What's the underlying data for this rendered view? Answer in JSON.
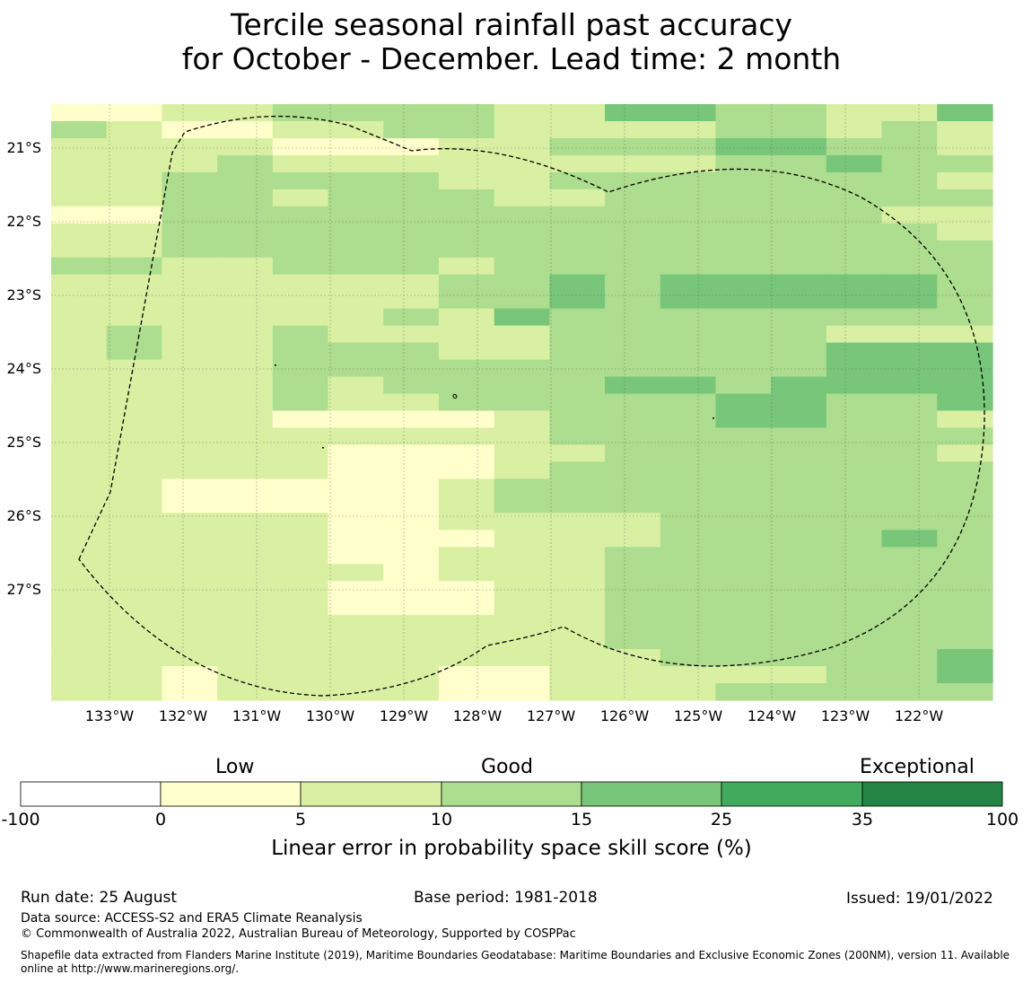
{
  "title": {
    "line1": "Tercile seasonal rainfall past accuracy",
    "line2": "for October - December. Lead time: 2 month"
  },
  "map": {
    "lat_labels": [
      "21°S",
      "22°S",
      "23°S",
      "24°S",
      "25°S",
      "26°S",
      "27°S"
    ],
    "lon_labels": [
      "133°W",
      "132°W",
      "131°W",
      "130°W",
      "129°W",
      "128°W",
      "127°W",
      "126°W",
      "125°W",
      "124°W",
      "123°W",
      "122°W"
    ],
    "skill_grid_class_rows": [
      "11223333224433224",
      "32112233222233232",
      "22221112233344332",
      "22232222222233433",
      "22333332233333332",
      "22332333223333333",
      "11333333333333322",
      "22333333333333332",
      "22333333333333333",
      "33223332333333333",
      "22222223343444443",
      "22222223343444443",
      "22222232433333333",
      "23223222233333222",
      "23223332233333444",
      "22223333333333444",
      "22223233334434444",
      "22223223333344334",
      "22221111233344332",
      "22222222233333333",
      "22222111223333332",
      "22222111233333333",
      "22111112333333333",
      "22111112333333333",
      "22222112222333333",
      "22222111222333343",
      "22222112223333333",
      "22222212223333333",
      "22222111223333333",
      "22222111223333333",
      "22222222223333333",
      "22222222223333333",
      "22222222222333334",
      "22122221122222334",
      "22122221122233333"
    ]
  },
  "colorbar": {
    "category_low": "Low",
    "category_good": "Good",
    "category_exceptional": "Exceptional",
    "ticks": [
      "-100",
      "0",
      "5",
      "10",
      "15",
      "25",
      "35",
      "100"
    ],
    "colors": [
      "#ffffff",
      "#ffffcc",
      "#d9f0a3",
      "#addd8e",
      "#78c679",
      "#41ab5d",
      "#238443"
    ],
    "label": "Linear error in probability space skill score (%)"
  },
  "footer": {
    "run_date": "Run date: 25 August",
    "base_period": "Base period: 1981-2018",
    "issued": "Issued: 19/01/2022",
    "data_source": "Data source: ACCESS-S2 and ERA5 Climate Reanalysis",
    "copyright": "© Commonwealth of Australia 2022, Australian Bureau of Meteorology, Supported by COSPPac",
    "shapefile": "Shapefile data extracted from Flanders Marine Institute (2019), Maritime Boundaries Geodatabase: Maritime Boundaries and Exclusive Economic Zones (200NM), version 11. Available online at http://www.marineregions.org/."
  }
}
